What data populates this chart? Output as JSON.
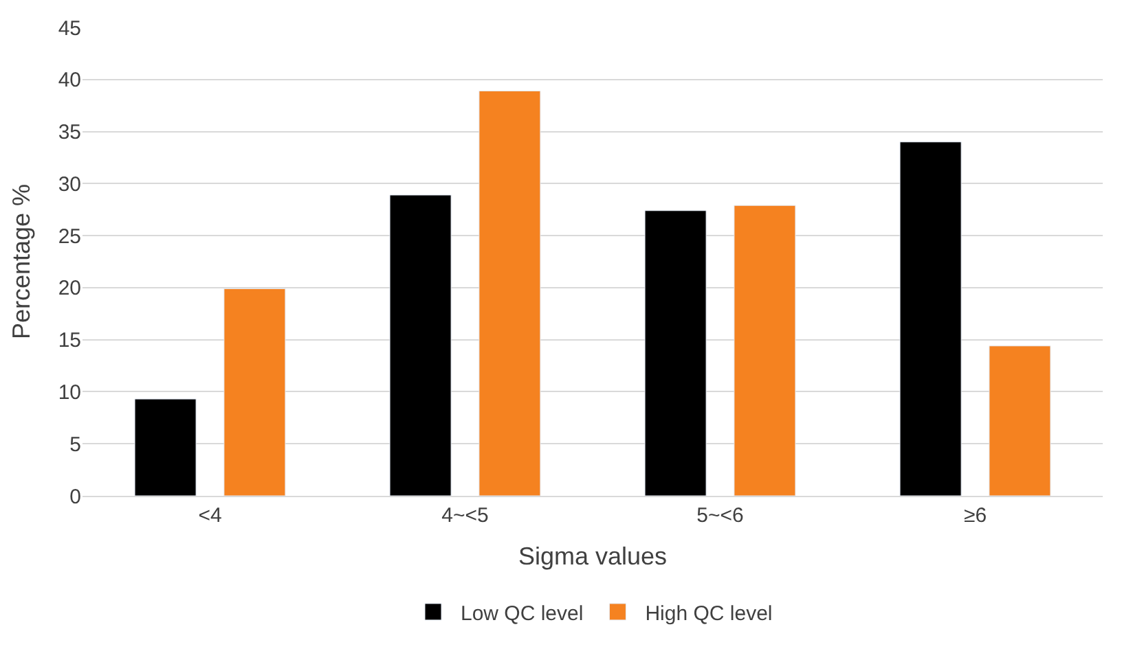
{
  "chart_data": {
    "type": "bar",
    "xlabel": "Sigma values",
    "ylabel": "Percentage %",
    "categories": [
      "<4",
      "4~<5",
      "5~<6",
      "≥6"
    ],
    "series": [
      {
        "name": "Low QC level",
        "color": "#000000",
        "values": [
          9.3,
          28.9,
          27.4,
          34.0
        ]
      },
      {
        "name": "High QC level",
        "color": "#f58220",
        "values": [
          19.9,
          38.9,
          27.9,
          14.4
        ]
      }
    ],
    "ylim": [
      0,
      45
    ],
    "yticks": [
      0,
      5,
      10,
      15,
      20,
      25,
      30,
      35,
      40,
      45
    ],
    "grid": "y",
    "legend": "bottom"
  }
}
